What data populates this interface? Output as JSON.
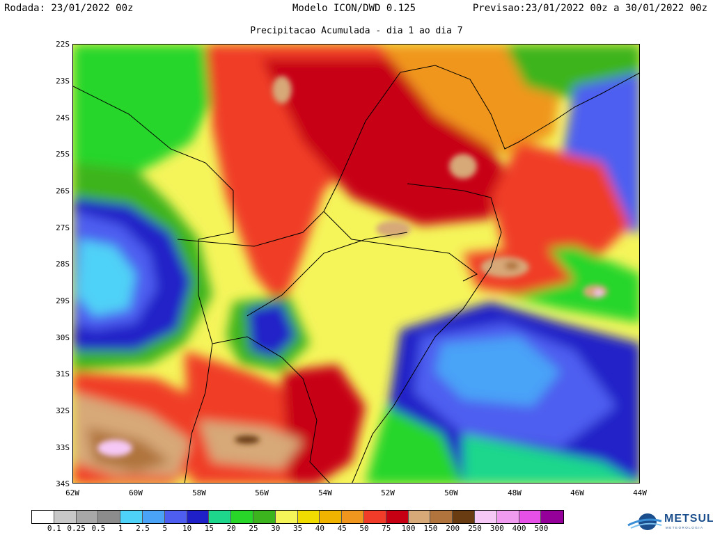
{
  "header": {
    "run": "Rodada: 23/01/2022 00z",
    "model": "Modelo ICON/DWD 0.125",
    "forecast": "Previsao:23/01/2022 00z a 30/01/2022 00z"
  },
  "subtitle": "Precipitacao Acumulada - dia 1 ao dia 7",
  "axes": {
    "lat_labels": [
      "22S",
      "23S",
      "24S",
      "25S",
      "26S",
      "27S",
      "28S",
      "29S",
      "30S",
      "31S",
      "32S",
      "33S",
      "34S"
    ],
    "lon_labels": [
      "62W",
      "60W",
      "58W",
      "56W",
      "54W",
      "52W",
      "50W",
      "48W",
      "46W",
      "44W"
    ]
  },
  "colorbar": {
    "labels": [
      "0.1",
      "0.25",
      "0.5",
      "1",
      "2.5",
      "5",
      "10",
      "15",
      "20",
      "25",
      "30",
      "35",
      "40",
      "45",
      "50",
      "75",
      "100",
      "150",
      "200",
      "250",
      "300",
      "400",
      "500"
    ],
    "colors": [
      "#ffffff",
      "#c8c8c8",
      "#a8a8a8",
      "#8c8c8c",
      "#4fd2f7",
      "#4aa3f7",
      "#4d5ef0",
      "#2020c8",
      "#1ed78c",
      "#28d62a",
      "#3cb41e",
      "#f5f55a",
      "#f0dc00",
      "#f0b400",
      "#f0961e",
      "#f03c28",
      "#c80014",
      "#d7a878",
      "#b0743c",
      "#6a3c12",
      "#f5c8f5",
      "#f09bf0",
      "#e650e6",
      "#96009a"
    ]
  },
  "logo": {
    "name": "METSUL",
    "tagline": "METEOROLOGIA"
  }
}
